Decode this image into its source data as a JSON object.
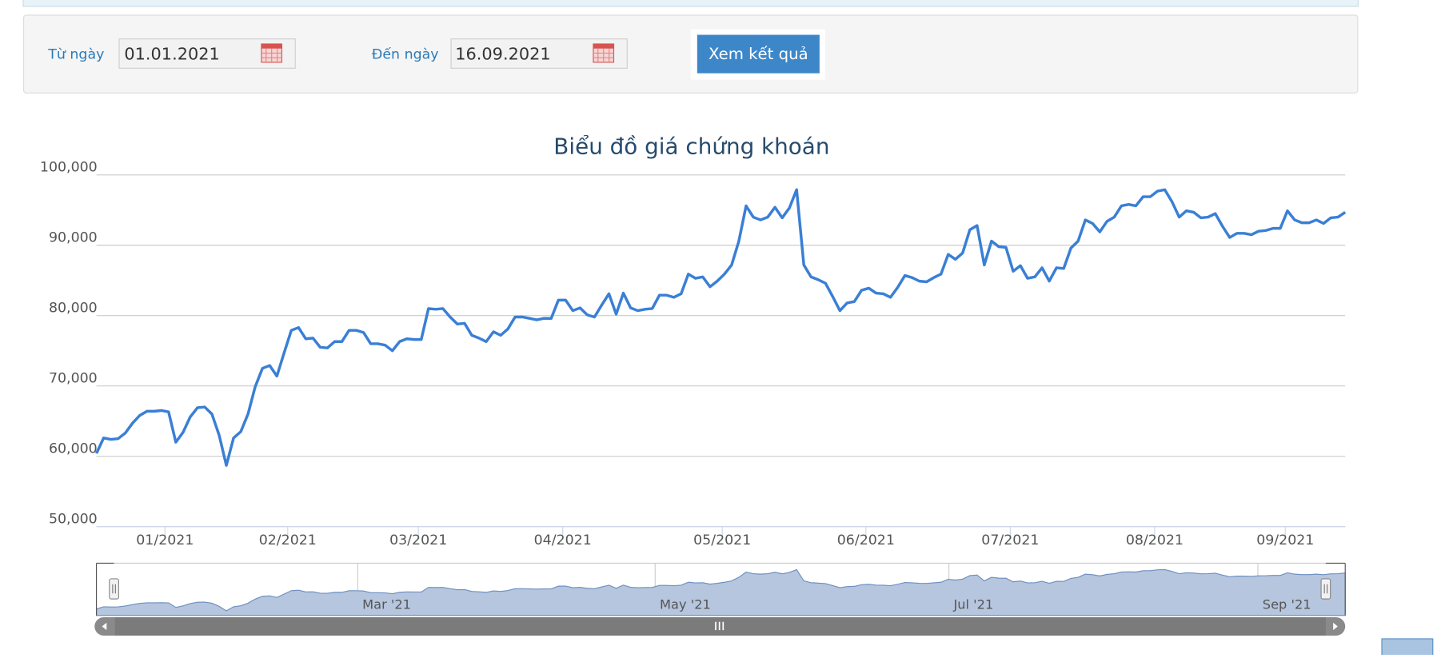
{
  "form": {
    "from_label": "Từ ngày",
    "from_value": "01.01.2021",
    "to_label": "Đến ngày",
    "to_value": "16.09.2021",
    "button": "Xem kết quả"
  },
  "chart_data": {
    "type": "line",
    "title": "Biểu đồ giá chứng khoán",
    "series": [
      {
        "color": "#3a7fd5",
        "values": [
          60400,
          62600,
          62400,
          62500,
          63300,
          64700,
          65800,
          66400,
          66400,
          66500,
          66300,
          62000,
          63400,
          65600,
          66900,
          67000,
          66000,
          63000,
          58700,
          62600,
          63500,
          66000,
          69900,
          72500,
          72900,
          71400,
          74700,
          77900,
          78300,
          76700,
          76800,
          75500,
          75400,
          76300,
          76300,
          77900,
          77900,
          77600,
          76000,
          76000,
          75800,
          75000,
          76300,
          76700,
          76600,
          76600,
          81000,
          80900,
          81000,
          79800,
          78800,
          78900,
          77200,
          76800,
          76300,
          77700,
          77200,
          78100,
          79800,
          79800,
          79600,
          79400,
          79600,
          79600,
          82200,
          82200,
          80700,
          81100,
          80100,
          79800,
          81500,
          83100,
          80200,
          83200,
          81100,
          80700,
          80900,
          81000,
          82900,
          82900,
          82600,
          83100,
          85900,
          85300,
          85500,
          84100,
          84900,
          85900,
          87200,
          90600,
          95600,
          94000,
          93600,
          94000,
          95400,
          93900,
          95300,
          97900,
          87200,
          85500,
          85100,
          84600,
          82700,
          80700,
          81800,
          82000,
          83600,
          83900,
          83200,
          83100,
          82600,
          84000,
          85700,
          85400,
          84900,
          84800,
          85400,
          85900,
          88700,
          88000,
          88900,
          92200,
          92800,
          87200,
          90600,
          89800,
          89700,
          86300,
          87100,
          85300,
          85500,
          86800,
          84900,
          86800,
          86700,
          89600,
          90600,
          93600,
          93100,
          91900,
          93400,
          94000,
          95600,
          95800,
          95600,
          96900,
          96900,
          97700,
          97900,
          96200,
          94000,
          94900,
          94700,
          93900,
          94000,
          94500,
          92700,
          91100,
          91700,
          91700,
          91500,
          92000,
          92100,
          92400,
          92400,
          94900,
          93600,
          93200,
          93200,
          93600,
          93100,
          93900,
          94000,
          94700
        ]
      }
    ],
    "xlim": [
      0,
      173
    ],
    "xticks": [
      {
        "value": 9.5,
        "label": "01/2021"
      },
      {
        "value": 26.5,
        "label": "02/2021"
      },
      {
        "value": 44.6,
        "label": "03/2021"
      },
      {
        "value": 64.6,
        "label": "04/2021"
      },
      {
        "value": 86.7,
        "label": "05/2021"
      },
      {
        "value": 106.6,
        "label": "06/2021"
      },
      {
        "value": 126.6,
        "label": "07/2021"
      },
      {
        "value": 146.6,
        "label": "08/2021"
      },
      {
        "value": 164.7,
        "label": "09/2021"
      }
    ],
    "ylim": [
      50000,
      100000
    ],
    "yticks": [
      {
        "value": 50000,
        "label": "50,000"
      },
      {
        "value": 60000,
        "label": "60,000"
      },
      {
        "value": 70000,
        "label": "70,000"
      },
      {
        "value": 80000,
        "label": "80,000"
      },
      {
        "value": 90000,
        "label": "90,000"
      },
      {
        "value": 100000,
        "label": "100,000"
      }
    ],
    "grid": true,
    "navigator_xticks": [
      {
        "value": 36.2,
        "label": "Mar '21"
      },
      {
        "value": 77.4,
        "label": "May '21"
      },
      {
        "value": 118.1,
        "label": "Jul '21"
      },
      {
        "value": 160.9,
        "label": "Sep '21"
      }
    ]
  }
}
